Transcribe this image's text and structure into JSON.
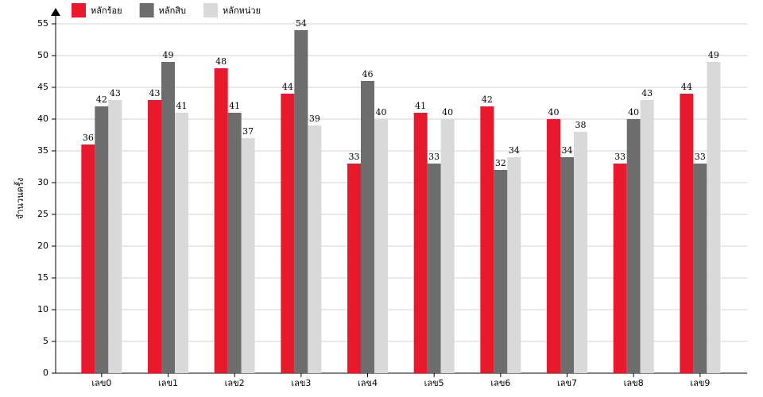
{
  "chart_data": {
    "type": "bar",
    "ylabel": "จำนวนครั้ง",
    "categories": [
      "เลข0",
      "เลข1",
      "เลข2",
      "เลข3",
      "เลข4",
      "เลข5",
      "เลข6",
      "เลข7",
      "เลข8",
      "เลข9"
    ],
    "series": [
      {
        "name": "หลักร้อย",
        "color": "#e8192c",
        "values": [
          36,
          43,
          48,
          44,
          33,
          41,
          42,
          40,
          33,
          44
        ]
      },
      {
        "name": "หลักสิบ",
        "color": "#6d6d6d",
        "values": [
          42,
          49,
          41,
          54,
          46,
          33,
          32,
          34,
          40,
          33
        ]
      },
      {
        "name": "หลักหน่วย",
        "color": "#d9d9d9",
        "values": [
          43,
          41,
          37,
          39,
          40,
          40,
          34,
          38,
          43,
          49
        ]
      }
    ],
    "ylim": [
      0,
      55
    ],
    "yticks": [
      0,
      5,
      10,
      15,
      20,
      25,
      30,
      35,
      40,
      45,
      50,
      55
    ],
    "grid": true
  }
}
